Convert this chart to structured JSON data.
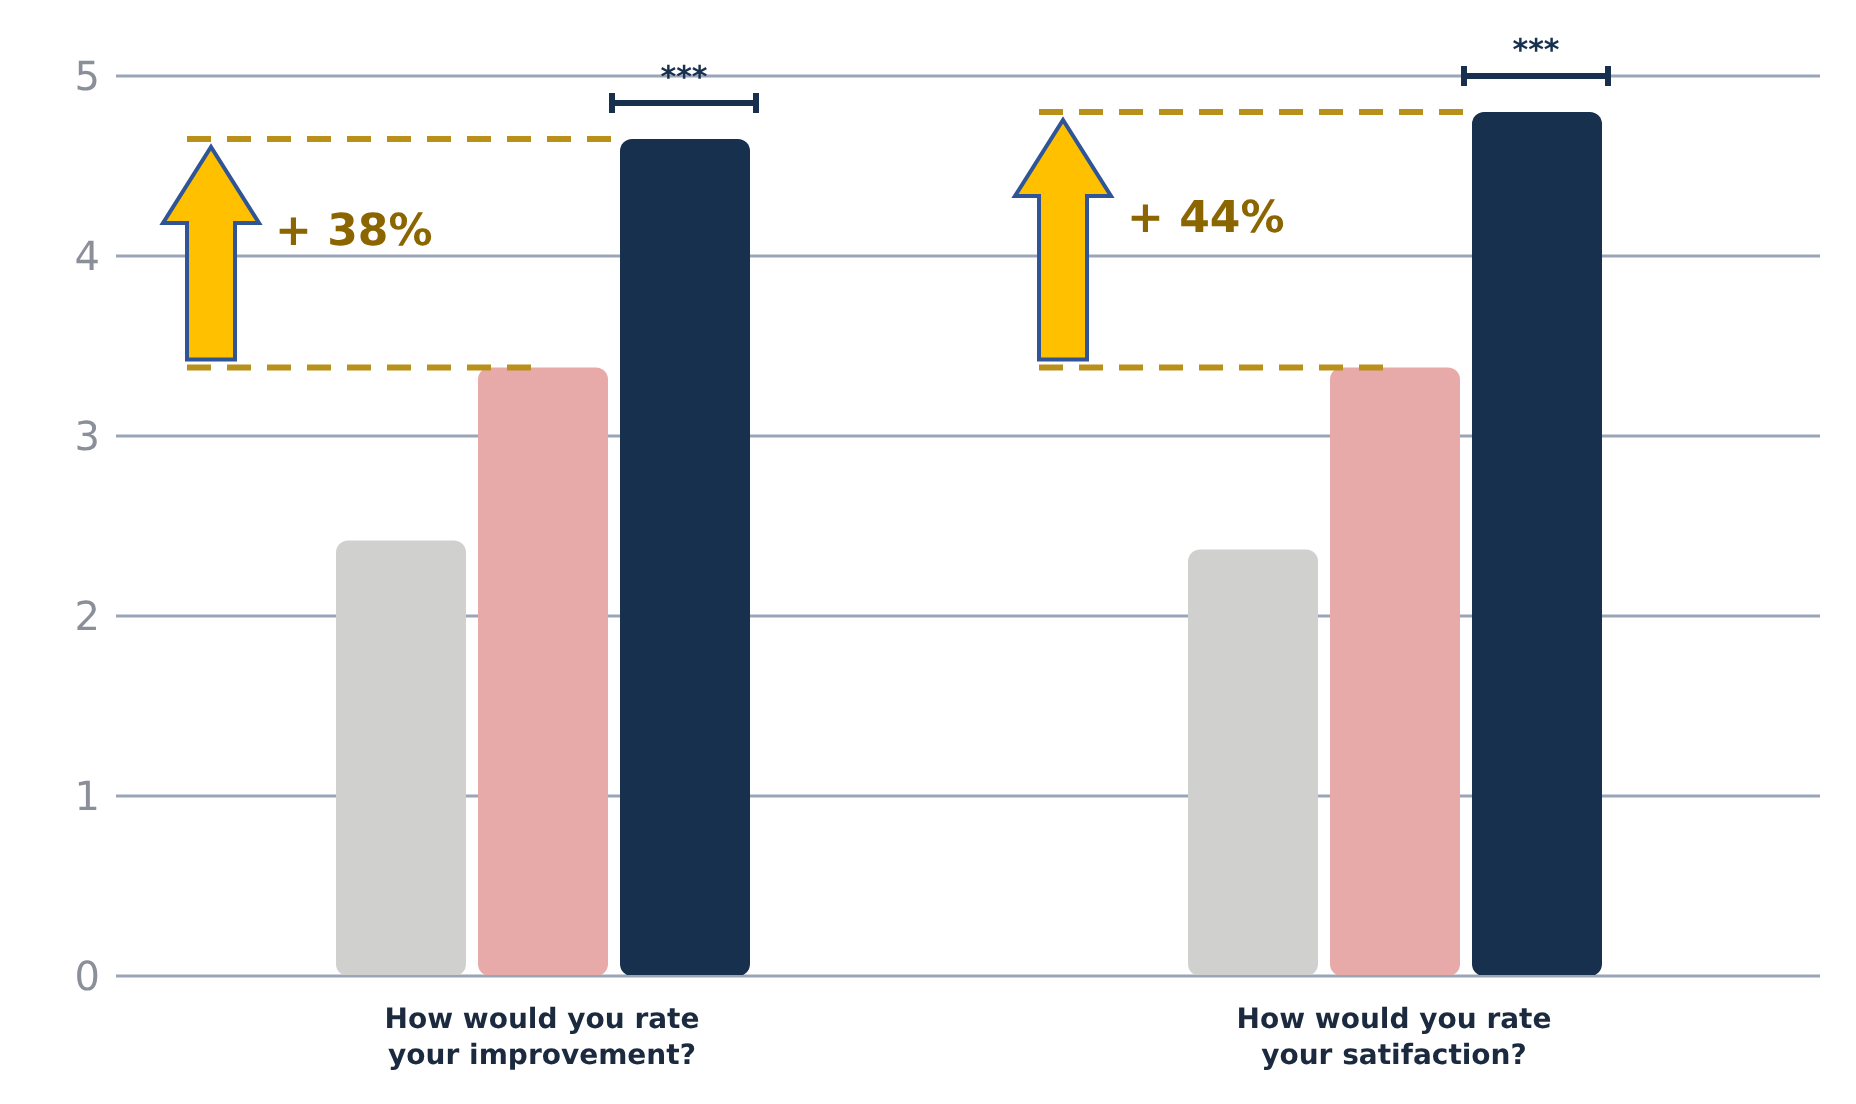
{
  "chart_data": {
    "type": "bar",
    "categories": [
      "How would you rate your improvement?",
      "How would you rate your satifaction?"
    ],
    "series": [
      {
        "color": "#d0d0ce",
        "values": [
          2.42,
          2.37
        ]
      },
      {
        "color": "#e8aaa9",
        "values": [
          3.38,
          3.38
        ]
      },
      {
        "color": "#17304e",
        "values": [
          4.65,
          4.8
        ]
      }
    ],
    "ylim": [
      0,
      5
    ],
    "yticks": [
      0,
      1,
      2,
      3,
      4,
      5
    ],
    "grid": "y",
    "annotations": [
      "***",
      "+ 38%",
      "***",
      "+ 44%"
    ]
  }
}
